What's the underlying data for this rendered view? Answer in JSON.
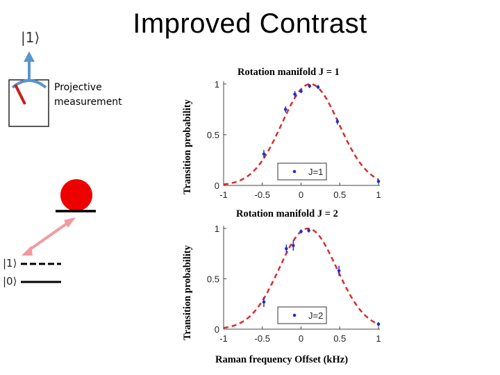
{
  "slide": {
    "title": "Improved Contrast",
    "ket_top": "|1⟩",
    "projective_label_line1": "Projective",
    "projective_label_line2": "measurement",
    "ket_level_1": "|1⟩",
    "ket_level_0": "|0⟩"
  },
  "colors": {
    "fit": "#dd2a2a",
    "points": "#2030c8",
    "arrow_blue": "#5b95cc",
    "arrow_pink": "#f29aa0",
    "ball": "#ee0000",
    "needle": "#cc1a1a"
  },
  "chart_data": [
    {
      "type": "scatter",
      "title": "Rotation manifold J = 1",
      "ylabel": "Transition probability",
      "xlabel": "",
      "xlim": [
        -1,
        1
      ],
      "ylim": [
        0,
        1
      ],
      "xticks": [
        "-1",
        "-0.5",
        "0",
        "0.5",
        "1"
      ],
      "yticks": [
        "0",
        "0.5",
        "1"
      ],
      "legend": {
        "label": "J=1",
        "position": "bottom-center"
      },
      "series": [
        {
          "name": "J=1",
          "points": [
            {
              "x": -0.48,
              "y": 0.31,
              "err": 0.04
            },
            {
              "x": -0.2,
              "y": 0.75,
              "err": 0.03
            },
            {
              "x": -0.08,
              "y": 0.9,
              "err": 0.03
            },
            {
              "x": 0.0,
              "y": 0.93,
              "err": 0.02
            },
            {
              "x": 0.11,
              "y": 0.98,
              "err": 0.02
            },
            {
              "x": 0.22,
              "y": 0.97,
              "err": 0.02
            },
            {
              "x": 0.47,
              "y": 0.63,
              "err": 0.03
            },
            {
              "x": 1.0,
              "y": 0.04,
              "err": 0.02
            }
          ]
        },
        {
          "name": "fit",
          "style": "dashed",
          "model": "gaussian",
          "center": 0.12,
          "amplitude": 1.0,
          "sigma": 0.37
        }
      ]
    },
    {
      "type": "scatter",
      "title": "Rotation manifold J = 2",
      "ylabel": "Transition probability",
      "xlabel": "Raman frequency Offset (kHz)",
      "xlim": [
        -1,
        1
      ],
      "ylim": [
        0,
        1
      ],
      "xticks": [
        "-1",
        "-0.5",
        "0",
        "0.5",
        "1"
      ],
      "yticks": [
        "0",
        "0.5",
        "1"
      ],
      "legend": {
        "label": "J=2",
        "position": "bottom-center"
      },
      "series": [
        {
          "name": "J=2",
          "points": [
            {
              "x": -0.48,
              "y": 0.27,
              "err": 0.05
            },
            {
              "x": -0.19,
              "y": 0.8,
              "err": 0.04
            },
            {
              "x": -0.1,
              "y": 0.83,
              "err": 0.05
            },
            {
              "x": 0.0,
              "y": 0.97,
              "err": 0.02
            },
            {
              "x": 0.1,
              "y": 0.98,
              "err": 0.02
            },
            {
              "x": 0.49,
              "y": 0.58,
              "err": 0.05
            },
            {
              "x": 1.0,
              "y": 0.05,
              "err": 0.02
            }
          ]
        },
        {
          "name": "fit",
          "style": "dashed",
          "model": "gaussian",
          "center": 0.09,
          "amplitude": 1.0,
          "sigma": 0.37
        }
      ]
    }
  ]
}
